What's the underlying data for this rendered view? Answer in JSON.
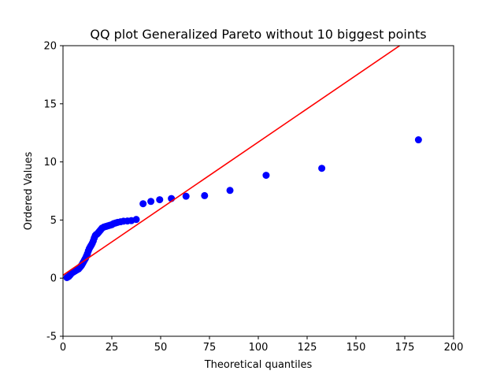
{
  "chart_data": {
    "type": "scatter",
    "title": "QQ plot Generalized Pareto without 10 biggest points",
    "xlabel": "Theoretical quantiles",
    "ylabel": "Ordered Values",
    "xlim": [
      0,
      200
    ],
    "ylim": [
      -5,
      20
    ],
    "xticks": [
      0,
      25,
      50,
      75,
      100,
      125,
      150,
      175,
      200
    ],
    "yticks": [
      -5,
      0,
      5,
      10,
      15,
      20
    ],
    "grid": false,
    "colors": {
      "points": "#0000ff",
      "line": "#ff0000"
    },
    "fit_line": {
      "x": [
        0,
        175
      ],
      "y": [
        0.25,
        20.3
      ]
    },
    "points": [
      {
        "x": 2.0,
        "y": 0.05
      },
      {
        "x": 2.5,
        "y": 0.1
      },
      {
        "x": 3.0,
        "y": 0.15
      },
      {
        "x": 3.5,
        "y": 0.25
      },
      {
        "x": 4.0,
        "y": 0.35
      },
      {
        "x": 4.5,
        "y": 0.45
      },
      {
        "x": 5.0,
        "y": 0.5
      },
      {
        "x": 5.5,
        "y": 0.55
      },
      {
        "x": 6.0,
        "y": 0.6
      },
      {
        "x": 6.5,
        "y": 0.65
      },
      {
        "x": 7.0,
        "y": 0.7
      },
      {
        "x": 7.5,
        "y": 0.75
      },
      {
        "x": 8.0,
        "y": 0.8
      },
      {
        "x": 8.5,
        "y": 0.9
      },
      {
        "x": 9.0,
        "y": 1.0
      },
      {
        "x": 9.5,
        "y": 1.1
      },
      {
        "x": 10.0,
        "y": 1.25
      },
      {
        "x": 10.5,
        "y": 1.4
      },
      {
        "x": 11.0,
        "y": 1.55
      },
      {
        "x": 11.5,
        "y": 1.7
      },
      {
        "x": 12.0,
        "y": 1.9
      },
      {
        "x": 12.5,
        "y": 2.1
      },
      {
        "x": 13.0,
        "y": 2.35
      },
      {
        "x": 13.5,
        "y": 2.55
      },
      {
        "x": 14.0,
        "y": 2.7
      },
      {
        "x": 14.5,
        "y": 2.85
      },
      {
        "x": 15.0,
        "y": 3.0
      },
      {
        "x": 15.5,
        "y": 3.2
      },
      {
        "x": 16.0,
        "y": 3.45
      },
      {
        "x": 16.5,
        "y": 3.65
      },
      {
        "x": 17.0,
        "y": 3.75
      },
      {
        "x": 17.5,
        "y": 3.8
      },
      {
        "x": 18.0,
        "y": 3.9
      },
      {
        "x": 18.5,
        "y": 4.0
      },
      {
        "x": 19.0,
        "y": 4.1
      },
      {
        "x": 19.5,
        "y": 4.2
      },
      {
        "x": 20.0,
        "y": 4.3
      },
      {
        "x": 21.0,
        "y": 4.4
      },
      {
        "x": 22.0,
        "y": 4.45
      },
      {
        "x": 23.0,
        "y": 4.5
      },
      {
        "x": 24.0,
        "y": 4.55
      },
      {
        "x": 25.0,
        "y": 4.6
      },
      {
        "x": 26.0,
        "y": 4.7
      },
      {
        "x": 27.0,
        "y": 4.75
      },
      {
        "x": 28.0,
        "y": 4.8
      },
      {
        "x": 29.5,
        "y": 4.85
      },
      {
        "x": 31.0,
        "y": 4.9
      },
      {
        "x": 33.0,
        "y": 4.92
      },
      {
        "x": 35.0,
        "y": 4.95
      },
      {
        "x": 37.5,
        "y": 5.05
      },
      {
        "x": 41.0,
        "y": 6.4
      },
      {
        "x": 45.0,
        "y": 6.6
      },
      {
        "x": 49.5,
        "y": 6.75
      },
      {
        "x": 55.5,
        "y": 6.85
      },
      {
        "x": 63.0,
        "y": 7.05
      },
      {
        "x": 72.5,
        "y": 7.1
      },
      {
        "x": 85.5,
        "y": 7.55
      },
      {
        "x": 104.0,
        "y": 8.85
      },
      {
        "x": 132.5,
        "y": 9.45
      },
      {
        "x": 182.0,
        "y": 11.9
      }
    ]
  }
}
